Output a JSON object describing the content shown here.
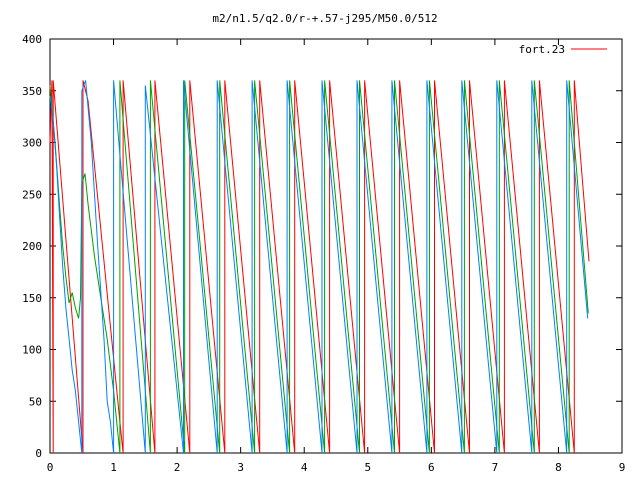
{
  "chart_data": {
    "type": "line",
    "title": "m2/n1.5/q2.0/r-+.57-j295/M50.0/512",
    "xlabel": "",
    "ylabel": "",
    "xlim": [
      0,
      9
    ],
    "ylim": [
      0,
      400
    ],
    "x_ticks": [
      "0",
      "1",
      "2",
      "3",
      "4",
      "5",
      "6",
      "7",
      "8",
      "9"
    ],
    "y_ticks": [
      "0",
      "50",
      "100",
      "150",
      "200",
      "250",
      "300",
      "350",
      "400"
    ],
    "grid": false,
    "legend_position": "top-right",
    "series": [
      {
        "name": "fort.23",
        "color": "#ff0000",
        "points": [
          [
            0.0,
            300
          ],
          [
            0.03,
            360
          ],
          [
            0.05,
            0
          ],
          [
            0.05,
            360
          ],
          [
            0.52,
            0
          ],
          [
            0.52,
            360
          ],
          [
            0.6,
            340
          ],
          [
            1.1,
            30
          ],
          [
            1.15,
            0
          ],
          [
            1.15,
            360
          ],
          [
            1.65,
            0
          ],
          [
            1.65,
            360
          ],
          [
            2.2,
            0
          ],
          [
            2.2,
            360
          ],
          [
            2.75,
            0
          ],
          [
            2.75,
            360
          ],
          [
            3.3,
            0
          ],
          [
            3.3,
            360
          ],
          [
            3.85,
            0
          ],
          [
            3.85,
            360
          ],
          [
            4.4,
            0
          ],
          [
            4.4,
            360
          ],
          [
            4.95,
            0
          ],
          [
            4.95,
            360
          ],
          [
            5.5,
            0
          ],
          [
            5.5,
            360
          ],
          [
            6.05,
            0
          ],
          [
            6.05,
            360
          ],
          [
            6.6,
            0
          ],
          [
            6.6,
            360
          ],
          [
            7.15,
            0
          ],
          [
            7.15,
            360
          ],
          [
            7.7,
            0
          ],
          [
            7.7,
            360
          ],
          [
            8.25,
            0
          ],
          [
            8.25,
            360
          ],
          [
            8.48,
            185
          ]
        ]
      },
      {
        "color": "#00a000",
        "points": [
          [
            0.0,
            355
          ],
          [
            0.08,
            300
          ],
          [
            0.15,
            240
          ],
          [
            0.2,
            200
          ],
          [
            0.25,
            170
          ],
          [
            0.3,
            145
          ],
          [
            0.35,
            155
          ],
          [
            0.4,
            140
          ],
          [
            0.45,
            130
          ],
          [
            0.48,
            150
          ],
          [
            0.5,
            260
          ],
          [
            0.55,
            270
          ],
          [
            0.6,
            240
          ],
          [
            0.7,
            190
          ],
          [
            0.8,
            150
          ],
          [
            0.9,
            110
          ],
          [
            1.0,
            60
          ],
          [
            1.05,
            30
          ],
          [
            1.1,
            0
          ],
          [
            1.1,
            360
          ],
          [
            1.58,
            0
          ],
          [
            1.58,
            360
          ],
          [
            2.12,
            0
          ],
          [
            2.12,
            360
          ],
          [
            2.67,
            0
          ],
          [
            2.67,
            360
          ],
          [
            3.22,
            0
          ],
          [
            3.22,
            360
          ],
          [
            3.77,
            0
          ],
          [
            3.77,
            360
          ],
          [
            4.32,
            0
          ],
          [
            4.32,
            360
          ],
          [
            4.87,
            0
          ],
          [
            4.87,
            360
          ],
          [
            5.42,
            0
          ],
          [
            5.42,
            360
          ],
          [
            5.97,
            0
          ],
          [
            5.97,
            360
          ],
          [
            6.52,
            0
          ],
          [
            6.52,
            360
          ],
          [
            7.07,
            0
          ],
          [
            7.07,
            360
          ],
          [
            7.62,
            0
          ],
          [
            7.62,
            360
          ],
          [
            8.17,
            0
          ],
          [
            8.17,
            360
          ],
          [
            8.47,
            135
          ]
        ]
      },
      {
        "color": "#0080ff",
        "points": [
          [
            0.0,
            345
          ],
          [
            0.05,
            320
          ],
          [
            0.1,
            280
          ],
          [
            0.15,
            230
          ],
          [
            0.2,
            180
          ],
          [
            0.25,
            140
          ],
          [
            0.3,
            110
          ],
          [
            0.35,
            80
          ],
          [
            0.4,
            60
          ],
          [
            0.45,
            30
          ],
          [
            0.5,
            0
          ],
          [
            0.5,
            350
          ],
          [
            0.56,
            360
          ],
          [
            0.65,
            300
          ],
          [
            0.75,
            200
          ],
          [
            0.85,
            110
          ],
          [
            0.9,
            50
          ],
          [
            0.95,
            30
          ],
          [
            1.0,
            0
          ],
          [
            1.0,
            360
          ],
          [
            1.5,
            0
          ],
          [
            1.5,
            355
          ],
          [
            2.1,
            0
          ],
          [
            2.1,
            360
          ],
          [
            2.63,
            0
          ],
          [
            2.63,
            360
          ],
          [
            3.18,
            0
          ],
          [
            3.18,
            360
          ],
          [
            3.73,
            0
          ],
          [
            3.73,
            360
          ],
          [
            4.28,
            0
          ],
          [
            4.28,
            360
          ],
          [
            4.83,
            0
          ],
          [
            4.83,
            360
          ],
          [
            5.38,
            0
          ],
          [
            5.38,
            360
          ],
          [
            5.93,
            0
          ],
          [
            5.93,
            360
          ],
          [
            6.48,
            0
          ],
          [
            6.48,
            360
          ],
          [
            7.03,
            0
          ],
          [
            7.03,
            360
          ],
          [
            7.58,
            0
          ],
          [
            7.58,
            360
          ],
          [
            8.13,
            0
          ],
          [
            8.13,
            360
          ],
          [
            8.46,
            130
          ]
        ]
      }
    ]
  }
}
